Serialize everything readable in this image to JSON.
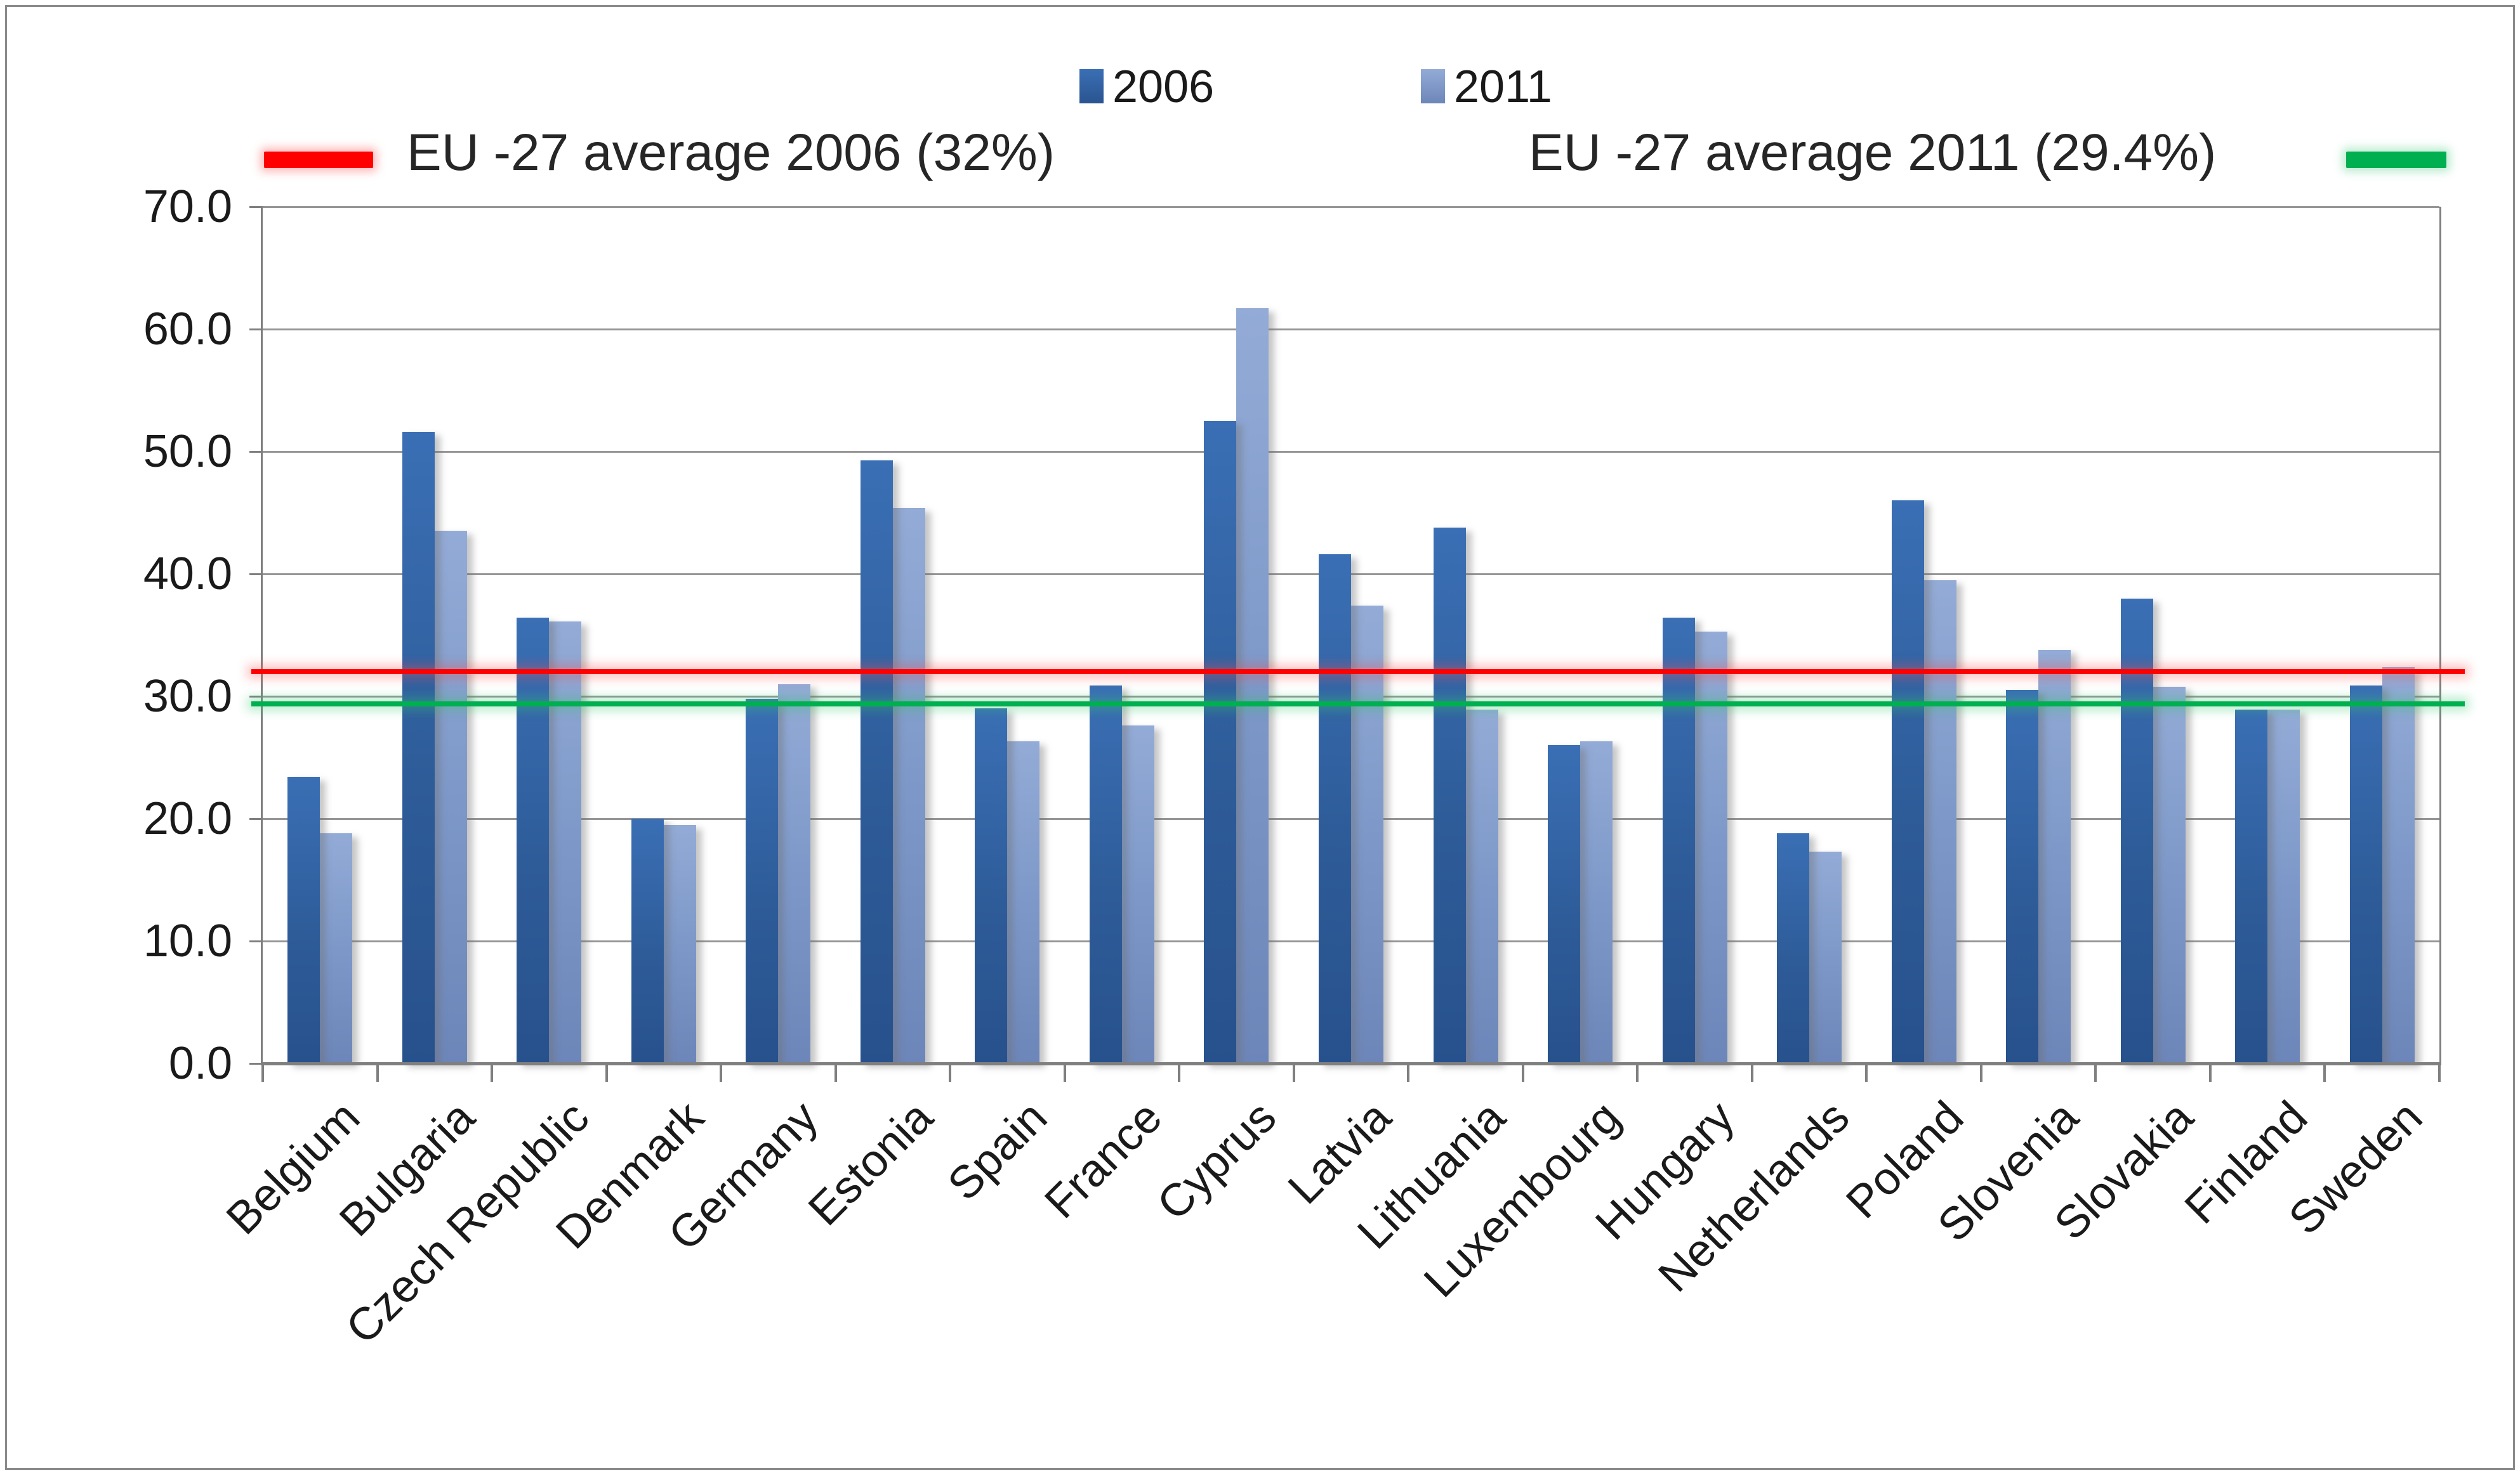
{
  "chart_data": {
    "type": "bar",
    "title": "",
    "categories": [
      "Belgium",
      "Bulgaria",
      "Czech Republic",
      "Denmark",
      "Germany",
      "Estonia",
      "Spain",
      "France",
      "Cyprus",
      "Latvia",
      "Lithuania",
      "Luxembourg",
      "Hungary",
      "Netherlands",
      "Poland",
      "Slovenia",
      "Slovakia",
      "Finland",
      "Sweden"
    ],
    "series": [
      {
        "name": "2006",
        "color": "#2E5C99",
        "values": [
          23.4,
          51.6,
          36.4,
          20.0,
          29.8,
          49.3,
          29.0,
          30.9,
          52.5,
          41.6,
          43.8,
          26.0,
          36.4,
          18.8,
          46.0,
          30.5,
          38.0,
          28.9,
          30.9
        ]
      },
      {
        "name": "2011",
        "color": "#7B96C7",
        "values": [
          18.8,
          43.5,
          36.1,
          19.5,
          31.0,
          45.4,
          26.3,
          27.6,
          61.7,
          37.4,
          28.9,
          26.3,
          35.3,
          17.3,
          39.5,
          33.8,
          30.8,
          28.9,
          32.4
        ]
      }
    ],
    "reference_lines": [
      {
        "label": "EU -27 average 2006 (32%)",
        "value": 32,
        "color": "#FF0000"
      },
      {
        "label": "EU -27 average 2011 (29.4%)",
        "value": 29.4,
        "color": "#00B050"
      }
    ],
    "ylim": [
      0,
      70
    ],
    "ytick_labels": [
      "70.0",
      "60.0",
      "50.0",
      "40.0",
      "30.0",
      "20.0",
      "10.0",
      "0.0"
    ],
    "grid": true,
    "legend_position": "top-center",
    "xlabel": "",
    "ylabel": ""
  },
  "legend": {
    "label_2006": "2006",
    "label_2011": "2011"
  }
}
